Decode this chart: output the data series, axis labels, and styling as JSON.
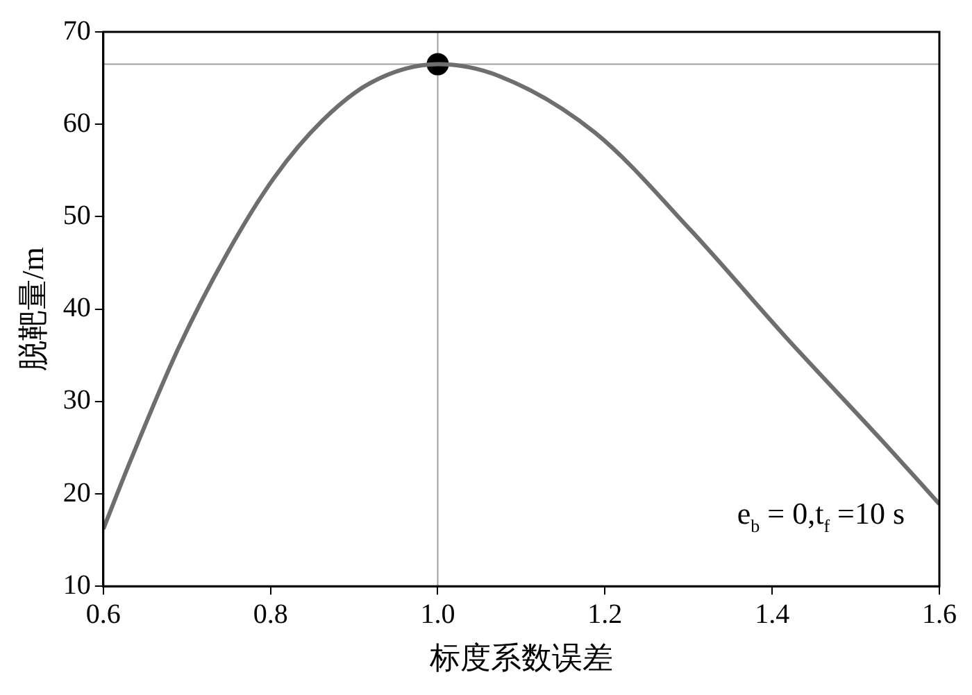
{
  "chart_data": {
    "type": "line",
    "xlabel": "标度系数误差",
    "ylabel": "脱靶量/m",
    "series": [
      {
        "color": "#6e6e6e",
        "marker": "none",
        "x": [
          0.6,
          0.633,
          0.69,
          0.748,
          0.805,
          0.862,
          0.92,
          1.0,
          1.074,
          1.188,
          1.303,
          1.417,
          1.532,
          1.6
        ],
        "values": [
          16.2,
          23.7,
          35.8,
          46.0,
          54.3,
          60.4,
          64.5,
          66.5,
          65.2,
          59.1,
          48.5,
          36.9,
          25.7,
          18.9
        ]
      },
      {
        "type": "scatter",
        "color": "#000000",
        "marker": "circle",
        "x": [
          1.0
        ],
        "values": [
          66.5
        ]
      }
    ],
    "xlim": [
      0.6,
      1.6
    ],
    "xticks": [
      0.6,
      0.8,
      {
        "value": 1.0,
        "label": "1.0"
      },
      1.2,
      1.4,
      1.6
    ],
    "ylim": [
      10,
      70
    ],
    "yticks": [
      10,
      20,
      30,
      40,
      50,
      60,
      70
    ],
    "ref_lines": [
      {
        "axis": "x",
        "value": 1.0,
        "color": "#a0a0a0"
      },
      {
        "axis": "y",
        "value": 66.5,
        "color": "#a0a0a0"
      }
    ],
    "annotations": [
      "e$_{b}$ = 0,t$_{f}$ =10 s"
    ],
    "grid": false,
    "legend": false
  }
}
